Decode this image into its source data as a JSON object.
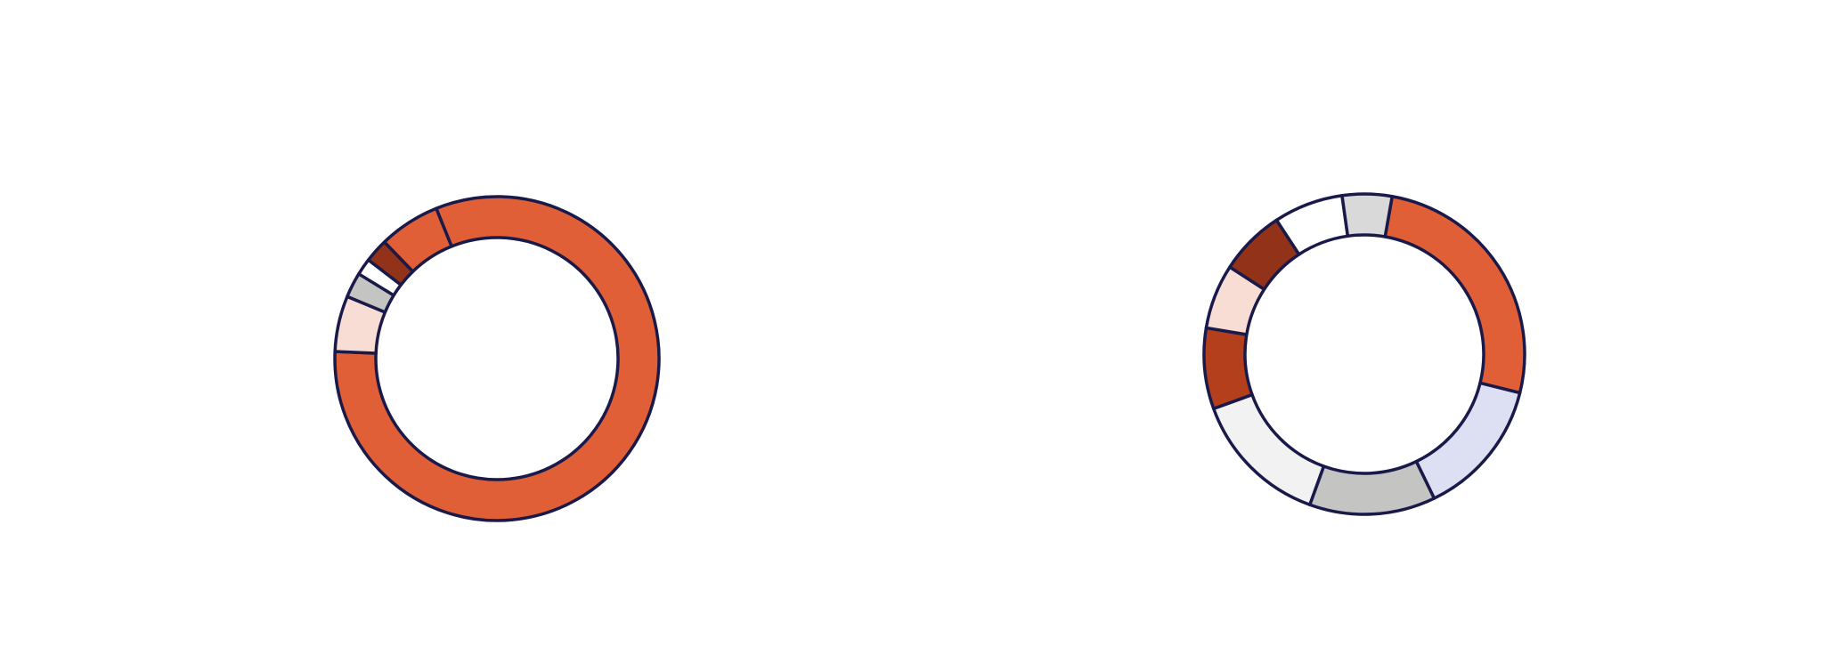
{
  "chart_data": [
    {
      "type": "pie",
      "style": "donut",
      "stroke_color": "#1a1a4a",
      "slices": [
        {
          "value": 0.8181,
          "color": "#e05f37"
        },
        {
          "value": 0.0556,
          "color": "#f8ddd5"
        },
        {
          "value": 0.025,
          "color": "#c4c4c2"
        },
        {
          "value": 0.0167,
          "color": "#ffffff"
        },
        {
          "value": 0.0236,
          "color": "#923218"
        },
        {
          "value": 0.061,
          "color": "#e05f37"
        }
      ]
    },
    {
      "type": "pie",
      "style": "donut",
      "stroke_color": "#1a1a4a",
      "slices": [
        {
          "value": 0.2611,
          "color": "#e05f37"
        },
        {
          "value": 0.1394,
          "color": "#dddff3"
        },
        {
          "value": 0.127,
          "color": "#c4c4c2"
        },
        {
          "value": 0.1395,
          "color": "#f2f2f2"
        },
        {
          "value": 0.0815,
          "color": "#b33f1d"
        },
        {
          "value": 0.0652,
          "color": "#f8ddd5"
        },
        {
          "value": 0.0663,
          "color": "#923218"
        },
        {
          "value": 0.07,
          "color": "#ffffff"
        },
        {
          "value": 0.05,
          "color": "#d9d9d9"
        }
      ]
    }
  ]
}
